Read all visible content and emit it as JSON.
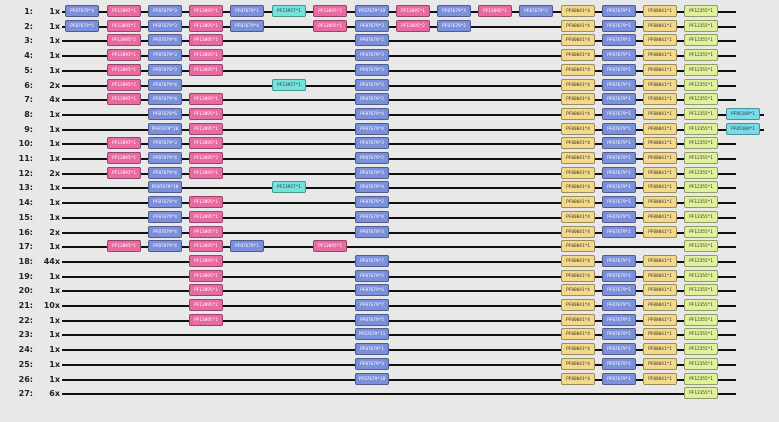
{
  "colors": {
    "PF07679": "#7b8fdb",
    "PF13895": "#e96aa0",
    "PF13927": "#73e4dc",
    "PF00041": "#f3d98a",
    "PF12355": "#dff19b",
    "PF05109": "#76dcea"
  },
  "rows": [
    {
      "num": "1:",
      "count": "1x",
      "domains": [
        {
          "label": "PF07679*4",
          "col": 0
        },
        {
          "label": "PF13895*1",
          "col": 1
        },
        {
          "label": "PF07679*3",
          "col": 2
        },
        {
          "label": "PF13895*1",
          "col": 3
        },
        {
          "label": "PF07679*1",
          "col": 4
        },
        {
          "label": "PF13927*1",
          "col": 5
        },
        {
          "label": "PF13895*2",
          "col": 6
        },
        {
          "label": "PF07679*19",
          "col": 7
        },
        {
          "label": "PF13895*1",
          "col": 8
        },
        {
          "label": "PF07679*3",
          "col": 9
        },
        {
          "label": "PF13895*1",
          "col": 10
        },
        {
          "label": "PF07679*2",
          "col": 11
        },
        {
          "label": "PF00041*4",
          "col": 12
        },
        {
          "label": "PF07679*1",
          "col": 13
        },
        {
          "label": "PF00041*1",
          "col": 14
        },
        {
          "label": "PF12355*1",
          "col": 15
        }
      ]
    },
    {
      "num": "2:",
      "count": "1x",
      "domains": [
        {
          "label": "PF07679*5",
          "col": 0
        },
        {
          "label": "PF13895*1",
          "col": 1
        },
        {
          "label": "PF07679*3",
          "col": 2
        },
        {
          "label": "PF13895*1",
          "col": 3
        },
        {
          "label": "PF07679*4",
          "col": 4
        },
        {
          "label": "PF13895*1",
          "col": 6
        },
        {
          "label": "PF07679*3",
          "col": 7
        },
        {
          "label": "PF13895*2",
          "col": 8
        },
        {
          "label": "PF07679*2",
          "col": 9
        },
        {
          "label": "PF00041*4",
          "col": 12
        },
        {
          "label": "PF07679*1",
          "col": 13
        },
        {
          "label": "PF00041*1",
          "col": 14
        },
        {
          "label": "PF12355*1",
          "col": 15
        }
      ]
    },
    {
      "num": "3:",
      "count": "1x",
      "domains": [
        {
          "label": "PF13895*2",
          "col": 1
        },
        {
          "label": "PF07679*4",
          "col": 2
        },
        {
          "label": "PF13895*1",
          "col": 3
        },
        {
          "label": "PF07679*2",
          "col": 7
        },
        {
          "label": "PF00041*4",
          "col": 12
        },
        {
          "label": "PF07679*1",
          "col": 13
        },
        {
          "label": "PF00041*1",
          "col": 14
        },
        {
          "label": "PF12355*1",
          "col": 15
        }
      ]
    },
    {
      "num": "4:",
      "count": "1x",
      "domains": [
        {
          "label": "PF13895*1",
          "col": 1
        },
        {
          "label": "PF07679*3",
          "col": 2
        },
        {
          "label": "PF13895*1",
          "col": 3
        },
        {
          "label": "PF07679*3",
          "col": 7
        },
        {
          "label": "PF00041*4",
          "col": 12
        },
        {
          "label": "PF07679*1",
          "col": 13
        },
        {
          "label": "PF00041*1",
          "col": 14
        },
        {
          "label": "PF12355*1",
          "col": 15
        }
      ]
    },
    {
      "num": "5:",
      "count": "1x",
      "domains": [
        {
          "label": "PF13895*1",
          "col": 1
        },
        {
          "label": "PF07679*3",
          "col": 2
        },
        {
          "label": "PF13895*1",
          "col": 3
        },
        {
          "label": "PF07679*3",
          "col": 7
        },
        {
          "label": "PF00041*4",
          "col": 12
        },
        {
          "label": "PF07679*1",
          "col": 13
        },
        {
          "label": "PF00041*1",
          "col": 14
        },
        {
          "label": "PF12355*1",
          "col": 15
        }
      ]
    },
    {
      "num": "6:",
      "count": "2x",
      "domains": [
        {
          "label": "PF13895*2",
          "col": 1
        },
        {
          "label": "PF07679*4",
          "col": 2
        },
        {
          "label": "PF13927*1",
          "col": 5
        },
        {
          "label": "PF07679*2",
          "col": 7
        },
        {
          "label": "PF00041*4",
          "col": 12
        },
        {
          "label": "PF07679*1",
          "col": 13
        },
        {
          "label": "PF00041*1",
          "col": 14
        },
        {
          "label": "PF12355*1",
          "col": 15
        }
      ]
    },
    {
      "num": "7:",
      "count": "4x",
      "domains": [
        {
          "label": "PF13895*1",
          "col": 1
        },
        {
          "label": "PF07679*4",
          "col": 2
        },
        {
          "label": "PF13895*1",
          "col": 3
        },
        {
          "label": "PF07679*2",
          "col": 7
        },
        {
          "label": "PF00041*4",
          "col": 12
        },
        {
          "label": "PF07679*1",
          "col": 13
        },
        {
          "label": "PF00041*1",
          "col": 14
        },
        {
          "label": "PF12355*1",
          "col": 15
        }
      ]
    },
    {
      "num": "8:",
      "count": "1x",
      "domains": [
        {
          "label": "PF07679*6",
          "col": 2
        },
        {
          "label": "PF13895*1",
          "col": 3
        },
        {
          "label": "PF07679*4",
          "col": 7
        },
        {
          "label": "PF00041*4",
          "col": 12
        },
        {
          "label": "PF07679*1",
          "col": 13
        },
        {
          "label": "PF00041*1",
          "col": 14
        },
        {
          "label": "PF12355*1",
          "col": 15
        },
        {
          "label": "PF05109*1",
          "col": 16
        }
      ]
    },
    {
      "num": "9:",
      "count": "1x",
      "domains": [
        {
          "label": "PF07679*10",
          "col": 2
        },
        {
          "label": "PF13895*1",
          "col": 3
        },
        {
          "label": "PF07679*4",
          "col": 7
        },
        {
          "label": "PF00041*4",
          "col": 12
        },
        {
          "label": "PF07679*1",
          "col": 13
        },
        {
          "label": "PF00041*1",
          "col": 14
        },
        {
          "label": "PF12355*1",
          "col": 15
        },
        {
          "label": "PF05109*1",
          "col": 16
        }
      ]
    },
    {
      "num": "10:",
      "count": "1x",
      "domains": [
        {
          "label": "PF13895*1",
          "col": 1
        },
        {
          "label": "PF07679*3",
          "col": 2
        },
        {
          "label": "PF13895*1",
          "col": 3
        },
        {
          "label": "PF07679*3",
          "col": 7
        },
        {
          "label": "PF00041*4",
          "col": 12
        },
        {
          "label": "PF07679*1",
          "col": 13
        },
        {
          "label": "PF00041*1",
          "col": 14
        },
        {
          "label": "PF12355*1",
          "col": 15
        }
      ]
    },
    {
      "num": "11:",
      "count": "1x",
      "domains": [
        {
          "label": "PF13895*1",
          "col": 1
        },
        {
          "label": "PF07679*4",
          "col": 2
        },
        {
          "label": "PF13895*2",
          "col": 3
        },
        {
          "label": "PF07679*2",
          "col": 7
        },
        {
          "label": "PF00041*4",
          "col": 12
        },
        {
          "label": "PF07679*1",
          "col": 13
        },
        {
          "label": "PF00041*1",
          "col": 14
        },
        {
          "label": "PF12355*1",
          "col": 15
        }
      ]
    },
    {
      "num": "12:",
      "count": "2x",
      "domains": [
        {
          "label": "PF13895*1",
          "col": 1
        },
        {
          "label": "PF07679*4",
          "col": 2
        },
        {
          "label": "PF13895*1",
          "col": 3
        },
        {
          "label": "PF07679*3",
          "col": 7
        },
        {
          "label": "PF00041*4",
          "col": 12
        },
        {
          "label": "PF07679*1",
          "col": 13
        },
        {
          "label": "PF00041*1",
          "col": 14
        },
        {
          "label": "PF12355*1",
          "col": 15
        }
      ]
    },
    {
      "num": "13:",
      "count": "1x",
      "domains": [
        {
          "label": "PF07679*10",
          "col": 2
        },
        {
          "label": "PF13927*1",
          "col": 5
        },
        {
          "label": "PF07679*4",
          "col": 7
        },
        {
          "label": "PF00041*4",
          "col": 12
        },
        {
          "label": "PF07679*1",
          "col": 13
        },
        {
          "label": "PF00041*1",
          "col": 14
        },
        {
          "label": "PF12355*1",
          "col": 15
        }
      ]
    },
    {
      "num": "14:",
      "count": "1x",
      "domains": [
        {
          "label": "PF07679*4",
          "col": 2
        },
        {
          "label": "PF13895*1",
          "col": 3
        },
        {
          "label": "PF07679*2",
          "col": 7
        },
        {
          "label": "PF00041*4",
          "col": 12
        },
        {
          "label": "PF07679*1",
          "col": 13
        },
        {
          "label": "PF00041*1",
          "col": 14
        },
        {
          "label": "PF12355*1",
          "col": 15
        }
      ]
    },
    {
      "num": "15:",
      "count": "1x",
      "domains": [
        {
          "label": "PF07679*4",
          "col": 2
        },
        {
          "label": "PF13895*1",
          "col": 3
        },
        {
          "label": "PF07679*4",
          "col": 7
        },
        {
          "label": "PF00041*4",
          "col": 12
        },
        {
          "label": "PF07679*1",
          "col": 13
        },
        {
          "label": "PF00041*1",
          "col": 14
        },
        {
          "label": "PF12355*1",
          "col": 15
        }
      ]
    },
    {
      "num": "16:",
      "count": "2x",
      "domains": [
        {
          "label": "PF07679*4",
          "col": 2
        },
        {
          "label": "PF13895*1",
          "col": 3
        },
        {
          "label": "PF07679*3",
          "col": 7
        },
        {
          "label": "PF00041*4",
          "col": 12
        },
        {
          "label": "PF07679*1",
          "col": 13
        },
        {
          "label": "PF00041*1",
          "col": 14
        },
        {
          "label": "PF12355*1",
          "col": 15
        }
      ]
    },
    {
      "num": "17:",
      "count": "1x",
      "domains": [
        {
          "label": "PF13895*1",
          "col": 1
        },
        {
          "label": "PF07679*4",
          "col": 2
        },
        {
          "label": "PF13895*1",
          "col": 3
        },
        {
          "label": "PF07679*1",
          "col": 4
        },
        {
          "label": "PF13895*1",
          "col": 6
        },
        {
          "label": "PF00041*1",
          "col": 12
        },
        {
          "label": "PF12355*1",
          "col": 15
        }
      ]
    },
    {
      "num": "18:",
      "count": "44x",
      "domains": [
        {
          "label": "PF13895*1",
          "col": 3
        },
        {
          "label": "PF07679*7",
          "col": 7
        },
        {
          "label": "PF00041*4",
          "col": 12
        },
        {
          "label": "PF07679*1",
          "col": 13
        },
        {
          "label": "PF00041*1",
          "col": 14
        },
        {
          "label": "PF12355*1",
          "col": 15
        }
      ]
    },
    {
      "num": "19:",
      "count": "1x",
      "domains": [
        {
          "label": "PF13895*1",
          "col": 3
        },
        {
          "label": "PF07679*5",
          "col": 7
        },
        {
          "label": "PF00041*4",
          "col": 12
        },
        {
          "label": "PF07679*1",
          "col": 13
        },
        {
          "label": "PF00041*1",
          "col": 14
        },
        {
          "label": "PF12355*1",
          "col": 15
        }
      ]
    },
    {
      "num": "20:",
      "count": "1x",
      "domains": [
        {
          "label": "PF13895*1",
          "col": 3
        },
        {
          "label": "PF07679*6",
          "col": 7
        },
        {
          "label": "PF00041*4",
          "col": 12
        },
        {
          "label": "PF07679*1",
          "col": 13
        },
        {
          "label": "PF00041*1",
          "col": 14
        },
        {
          "label": "PF12355*1",
          "col": 15
        }
      ]
    },
    {
      "num": "21:",
      "count": "10x",
      "domains": [
        {
          "label": "PF13895*2",
          "col": 3
        },
        {
          "label": "PF07679*7",
          "col": 7
        },
        {
          "label": "PF00041*4",
          "col": 12
        },
        {
          "label": "PF07679*1",
          "col": 13
        },
        {
          "label": "PF00041*1",
          "col": 14
        },
        {
          "label": "PF12355*1",
          "col": 15
        }
      ]
    },
    {
      "num": "22:",
      "count": "1x",
      "domains": [
        {
          "label": "PF13895*1",
          "col": 3
        },
        {
          "label": "PF07679*5",
          "col": 7
        },
        {
          "label": "PF00041*4",
          "col": 12
        },
        {
          "label": "PF07679*1",
          "col": 13
        },
        {
          "label": "PF00041*1",
          "col": 14
        },
        {
          "label": "PF12355*1",
          "col": 15
        }
      ]
    },
    {
      "num": "23:",
      "count": "1x",
      "domains": [
        {
          "label": "PF07679*11",
          "col": 7
        },
        {
          "label": "PF00041*4",
          "col": 12
        },
        {
          "label": "PF07679*1",
          "col": 13
        },
        {
          "label": "PF00041*1",
          "col": 14
        },
        {
          "label": "PF12355*1",
          "col": 15
        }
      ]
    },
    {
      "num": "24:",
      "count": "1x",
      "domains": [
        {
          "label": "PF07679*1",
          "col": 7
        },
        {
          "label": "PF00041*4",
          "col": 12
        },
        {
          "label": "PF07679*1",
          "col": 13
        },
        {
          "label": "PF00041*1",
          "col": 14
        },
        {
          "label": "PF12355*1",
          "col": 15
        }
      ]
    },
    {
      "num": "25:",
      "count": "1x",
      "domains": [
        {
          "label": "PF07679*3",
          "col": 7
        },
        {
          "label": "PF00041*4",
          "col": 12
        },
        {
          "label": "PF07679*1",
          "col": 13
        },
        {
          "label": "PF00041*1",
          "col": 14
        },
        {
          "label": "PF12355*1",
          "col": 15
        }
      ]
    },
    {
      "num": "26:",
      "count": "1x",
      "domains": [
        {
          "label": "PF07679*18",
          "col": 7
        },
        {
          "label": "PF00041*4",
          "col": 12
        },
        {
          "label": "PF07679*1",
          "col": 13
        },
        {
          "label": "PF00041*1",
          "col": 14
        },
        {
          "label": "PF12355*1",
          "col": 15
        }
      ]
    },
    {
      "num": "27:",
      "count": "6x",
      "domains": [
        {
          "label": "PF12355*1",
          "col": 15
        }
      ]
    }
  ]
}
